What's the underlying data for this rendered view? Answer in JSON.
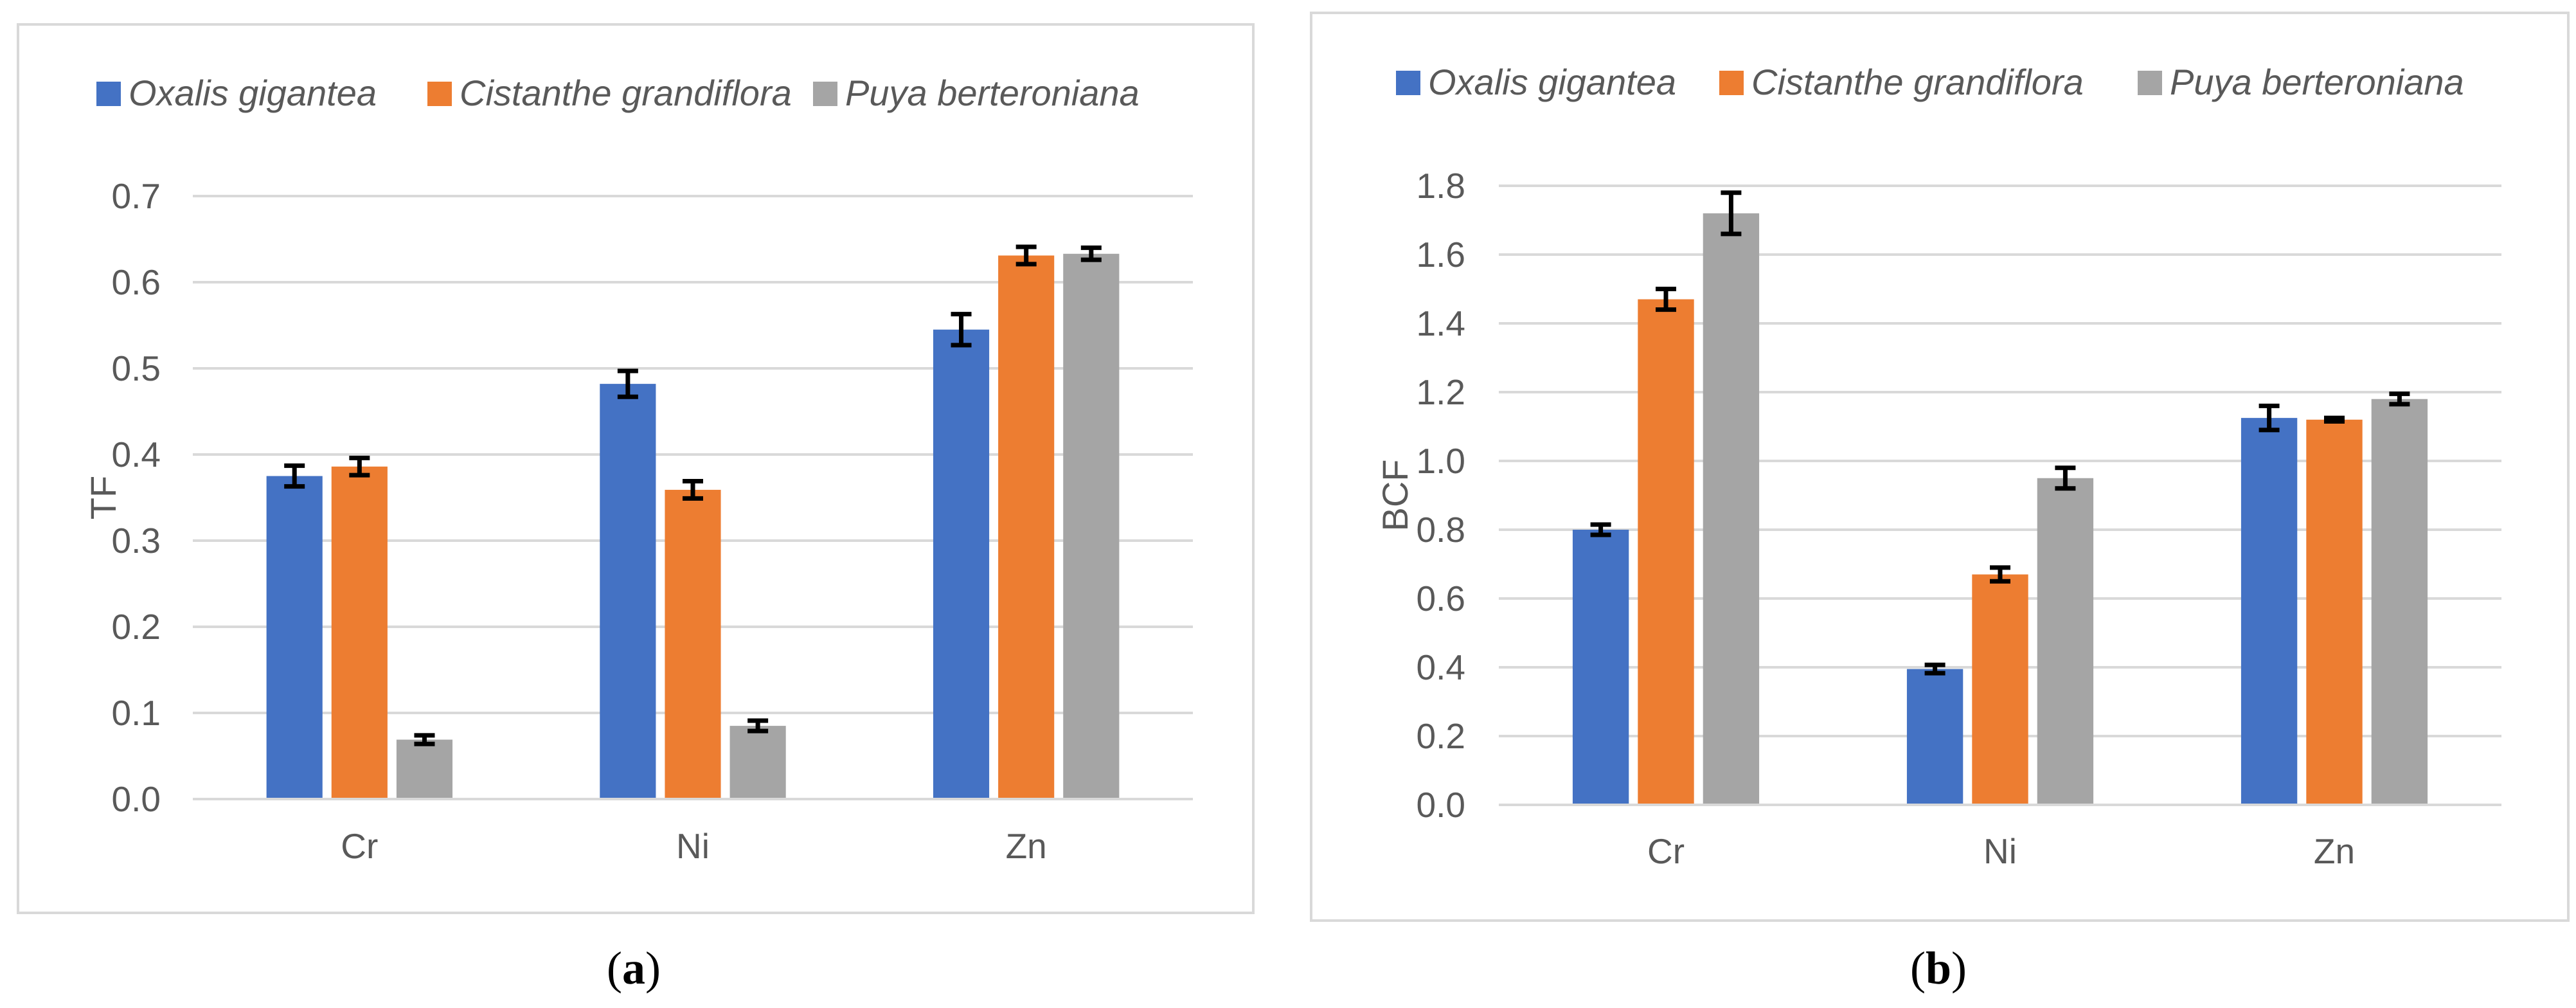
{
  "chart_data": [
    {
      "type": "bar",
      "panel_label": "a",
      "ylabel": "TF",
      "xlabel": "",
      "ylim": [
        0,
        0.7
      ],
      "ytick_step": 0.1,
      "ytick_labels": [
        "0.0",
        "0.1",
        "0.2",
        "0.3",
        "0.4",
        "0.5",
        "0.6",
        "0.7"
      ],
      "categories": [
        "Cr",
        "Ni",
        "Zn"
      ],
      "series": [
        {
          "name": "Oxalis gigantea",
          "color": "#4472C4",
          "values": [
            0.375,
            0.482,
            0.545
          ],
          "errors": [
            0.012,
            0.015,
            0.018
          ]
        },
        {
          "name": "Cistanthe grandiflora",
          "color": "#ED7D31",
          "values": [
            0.386,
            0.359,
            0.631
          ],
          "errors": [
            0.01,
            0.01,
            0.01
          ]
        },
        {
          "name": "Puya berteroniana",
          "color": "#A5A5A5",
          "values": [
            0.069,
            0.085,
            0.633
          ],
          "errors": [
            0.005,
            0.006,
            0.007
          ]
        }
      ],
      "legend_position": "top",
      "grid": true
    },
    {
      "type": "bar",
      "panel_label": "b",
      "ylabel": "BCF",
      "xlabel": "",
      "ylim": [
        0,
        1.8
      ],
      "ytick_step": 0.2,
      "ytick_labels": [
        "0.0",
        "0.2",
        "0.4",
        "0.6",
        "0.8",
        "1.0",
        "1.2",
        "1.4",
        "1.6",
        "1.8"
      ],
      "categories": [
        "Cr",
        "Ni",
        "Zn"
      ],
      "series": [
        {
          "name": "Oxalis gigantea",
          "color": "#4472C4",
          "values": [
            0.8,
            0.395,
            1.125
          ],
          "errors": [
            0.015,
            0.012,
            0.035
          ]
        },
        {
          "name": "Cistanthe grandiflora",
          "color": "#ED7D31",
          "values": [
            1.47,
            0.67,
            1.12
          ],
          "errors": [
            0.03,
            0.02,
            0.005
          ]
        },
        {
          "name": "Puya berteroniana",
          "color": "#A5A5A5",
          "values": [
            1.72,
            0.95,
            1.18
          ],
          "errors": [
            0.06,
            0.03,
            0.015
          ]
        }
      ],
      "legend_position": "top",
      "grid": true
    }
  ],
  "captions": {
    "a": "a",
    "b": "b"
  }
}
